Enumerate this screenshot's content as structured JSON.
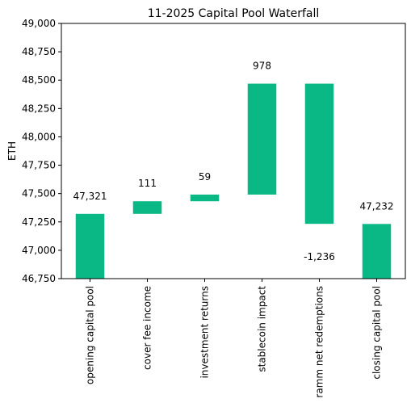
{
  "chart_data": {
    "type": "bar",
    "title": "11-2025 Capital Pool Waterfall",
    "ylabel": "ETH",
    "xlabel": "",
    "ylim": [
      46750,
      49000
    ],
    "yticks": [
      46750,
      47000,
      47250,
      47500,
      47750,
      48000,
      48250,
      48500,
      48750,
      49000
    ],
    "ytick_labels": [
      "46,750",
      "47,000",
      "47,250",
      "47,500",
      "47,750",
      "48,000",
      "48,250",
      "48,500",
      "48,750",
      "49,000"
    ],
    "categories": [
      "opening capital pool",
      "cover fee income",
      "investment returns",
      "stablecoin impact",
      "ramm net redemptions",
      "closing capital pool"
    ],
    "values": [
      47321,
      111,
      59,
      978,
      -1236,
      47232
    ],
    "bar_bottoms": [
      46750,
      47321,
      47432,
      47491,
      48469,
      47232
    ],
    "bar_tops": [
      47321,
      47432,
      47491,
      48469,
      47233,
      46750
    ],
    "data_labels": [
      "47,321",
      "111",
      "59",
      "978",
      "-1,236",
      "47,232"
    ],
    "bar_color": "#09b884",
    "grid": false,
    "legend": "none"
  }
}
